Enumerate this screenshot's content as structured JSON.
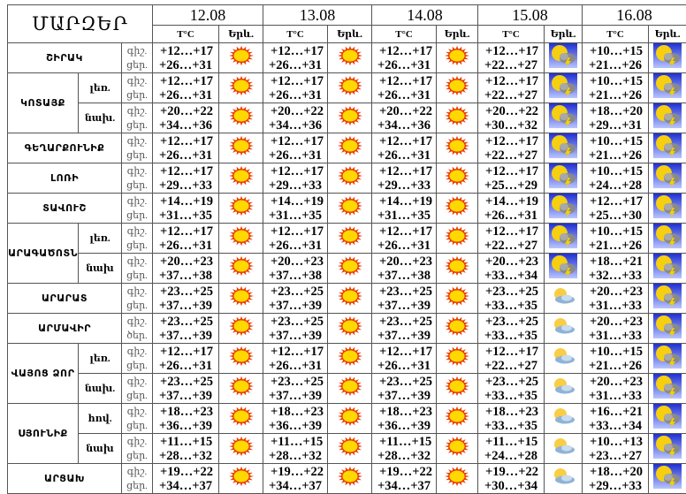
{
  "header": {
    "title": "ՄԱՐԶԵՐ",
    "temp_label": "T°C",
    "city_label": "Երև."
  },
  "dates": [
    "12.08",
    "13.08",
    "14.08",
    "15.08",
    "16.08"
  ],
  "colors": {
    "sun": "#ffd800",
    "sun_rays": "#e8400a",
    "thunder_bg": "#3a4fe0"
  },
  "regions": [
    {
      "name": "ՇԻՐԱԿ",
      "subs": [
        {
          "label": "",
          "night": "գիշ.",
          "day": "ցեր.",
          "f": [
            {
              "n": "+12…+17",
              "d": "+26…+31",
              "icon": "sun"
            },
            {
              "n": "+12…+17",
              "d": "+26…+31",
              "icon": "sun"
            },
            {
              "n": "+12…+17",
              "d": "+26…+31",
              "icon": "sun"
            },
            {
              "n": "+12…+17",
              "d": "+22…+27",
              "icon": "sun-cloud-thunder"
            },
            {
              "n": "+10…+15",
              "d": "+21…+26",
              "icon": "sun-cloud-thunder"
            }
          ]
        }
      ]
    },
    {
      "name": "ԿՈՏԱՅՔ",
      "subs": [
        {
          "label": "լեռ.",
          "night": "գիշ.",
          "day": "ցեր.",
          "f": [
            {
              "n": "+12…+17",
              "d": "+26…+31",
              "icon": "sun"
            },
            {
              "n": "+12…+17",
              "d": "+26…+31",
              "icon": "sun"
            },
            {
              "n": "+12…+17",
              "d": "+26…+31",
              "icon": "sun"
            },
            {
              "n": "+12…+17",
              "d": "+22…+27",
              "icon": "sun-cloud-thunder"
            },
            {
              "n": "+10…+15",
              "d": "+21…+26",
              "icon": "sun-cloud-thunder"
            }
          ]
        },
        {
          "label": "նախ.",
          "night": "գիշ.",
          "day": "ցեր.",
          "f": [
            {
              "n": "+20…+22",
              "d": "+34…+36",
              "icon": "sun"
            },
            {
              "n": "+20…+22",
              "d": "+34…+36",
              "icon": "sun"
            },
            {
              "n": "+20…+22",
              "d": "+34…+36",
              "icon": "sun"
            },
            {
              "n": "+20…+22",
              "d": "+30…+32",
              "icon": "sun-cloud-thunder"
            },
            {
              "n": "+18…+20",
              "d": "+29…+31",
              "icon": "sun-cloud-thunder"
            }
          ]
        }
      ]
    },
    {
      "name": "ԳԵՂԱՐՔՈՒՆԻՔ",
      "subs": [
        {
          "label": "",
          "night": "գիշ.",
          "day": "ցեր.",
          "f": [
            {
              "n": "+12…+17",
              "d": "+26…+31",
              "icon": "sun"
            },
            {
              "n": "+12…+17",
              "d": "+26…+31",
              "icon": "sun"
            },
            {
              "n": "+12…+17",
              "d": "+26…+31",
              "icon": "sun"
            },
            {
              "n": "+12…+17",
              "d": "+22…+27",
              "icon": "sun-cloud-thunder"
            },
            {
              "n": "+10…+15",
              "d": "+21…+26",
              "icon": "sun-cloud-thunder"
            }
          ]
        }
      ]
    },
    {
      "name": "ԼՈՌԻ",
      "subs": [
        {
          "label": "",
          "night": "գիշ.",
          "day": "ցեր.",
          "f": [
            {
              "n": "+12…+17",
              "d": "+29…+33",
              "icon": "sun"
            },
            {
              "n": "+12…+17",
              "d": "+29…+33",
              "icon": "sun"
            },
            {
              "n": "+12…+17",
              "d": "+29…+33",
              "icon": "sun"
            },
            {
              "n": "+12…+17",
              "d": "+25…+29",
              "icon": "sun-cloud-thunder"
            },
            {
              "n": "+10…+15",
              "d": "+24…+28",
              "icon": "sun-cloud-thunder"
            }
          ]
        }
      ]
    },
    {
      "name": "ՏԱՎՈՒՇ",
      "subs": [
        {
          "label": "",
          "night": "գիշ.",
          "day": "ցեր.",
          "f": [
            {
              "n": "+14…+19",
              "d": "+31…+35",
              "icon": "sun"
            },
            {
              "n": "+14…+19",
              "d": "+31…+35",
              "icon": "sun"
            },
            {
              "n": "+14…+19",
              "d": "+31…+35",
              "icon": "sun"
            },
            {
              "n": "+14…+19",
              "d": "+26…+31",
              "icon": "sun-cloud-thunder"
            },
            {
              "n": "+12…+17",
              "d": "+25…+30",
              "icon": "sun-cloud-thunder"
            }
          ]
        }
      ]
    },
    {
      "name": "ԱՐԱԳԱԾՈՏՆ",
      "subs": [
        {
          "label": "լեռ.",
          "night": "գիշ.",
          "day": "ցեր.",
          "f": [
            {
              "n": "+12…+17",
              "d": "+26…+31",
              "icon": "sun"
            },
            {
              "n": "+12…+17",
              "d": "+26…+31",
              "icon": "sun"
            },
            {
              "n": "+12…+17",
              "d": "+26…+31",
              "icon": "sun"
            },
            {
              "n": "+12…+17",
              "d": "+22…+27",
              "icon": "sun-cloud-thunder"
            },
            {
              "n": "+10…+15",
              "d": "+21…+26",
              "icon": "sun-cloud-thunder"
            }
          ]
        },
        {
          "label": "նախ",
          "night": "գիշ.",
          "day": "ցեր.",
          "f": [
            {
              "n": "+20…+23",
              "d": "+37…+38",
              "icon": "sun"
            },
            {
              "n": "+20…+23",
              "d": "+37…+38",
              "icon": "sun"
            },
            {
              "n": "+20…+23",
              "d": "+37…+38",
              "icon": "sun"
            },
            {
              "n": "+20…+23",
              "d": "+33…+34",
              "icon": "sun-cloud-thunder"
            },
            {
              "n": "+18…+21",
              "d": "+32…+33",
              "icon": "sun-cloud-thunder"
            }
          ]
        }
      ]
    },
    {
      "name": "ԱՐԱՐԱՏ",
      "subs": [
        {
          "label": "",
          "night": "գիշ.",
          "day": "ցեր.",
          "f": [
            {
              "n": "+23…+25",
              "d": "+37…+39",
              "icon": "sun"
            },
            {
              "n": "+23…+25",
              "d": "+37…+39",
              "icon": "sun"
            },
            {
              "n": "+23…+25",
              "d": "+37…+39",
              "icon": "sun"
            },
            {
              "n": "+23…+25",
              "d": "+33…+35",
              "icon": "sun-cloud"
            },
            {
              "n": "+20…+23",
              "d": "+31…+33",
              "icon": "sun-cloud-thunder"
            }
          ]
        }
      ]
    },
    {
      "name": "ԱՐՄԱՎԻՐ",
      "subs": [
        {
          "label": "",
          "night": "գիշ.",
          "day": "ծեր.",
          "f": [
            {
              "n": "+23…+25",
              "d": "+37…+39",
              "icon": "sun"
            },
            {
              "n": "+23…+25",
              "d": "+37…+39",
              "icon": "sun"
            },
            {
              "n": "+23…+25",
              "d": "+37…+39",
              "icon": "sun"
            },
            {
              "n": "+23…+25",
              "d": "+33…+35",
              "icon": "sun-cloud"
            },
            {
              "n": "+20…+23",
              "d": "+31…+33",
              "icon": "sun-cloud-thunder"
            }
          ]
        }
      ]
    },
    {
      "name": "ՎԱՅՈՑ ՁՈՐ",
      "subs": [
        {
          "label": "լեռ.",
          "night": "գիշ.",
          "day": "ցեր.",
          "f": [
            {
              "n": "+12…+17",
              "d": "+26…+31",
              "icon": "sun"
            },
            {
              "n": "+12…+17",
              "d": "+26…+31",
              "icon": "sun"
            },
            {
              "n": "+12…+17",
              "d": "+26…+31",
              "icon": "sun"
            },
            {
              "n": "+12…+17",
              "d": "+22…+27",
              "icon": "sun-cloud"
            },
            {
              "n": "+10…+15",
              "d": "+21…+26",
              "icon": "sun-cloud-thunder"
            }
          ]
        },
        {
          "label": "նախ.",
          "night": "գիշ.",
          "day": "ցեր.",
          "f": [
            {
              "n": "+23…+25",
              "d": "+37…+39",
              "icon": "sun"
            },
            {
              "n": "+23…+25",
              "d": "+37…+39",
              "icon": "sun"
            },
            {
              "n": "+23…+25",
              "d": "+37…+39",
              "icon": "sun"
            },
            {
              "n": "+23…+25",
              "d": "+33…+35",
              "icon": "sun-cloud"
            },
            {
              "n": "+20…+23",
              "d": "+31…+33",
              "icon": "sun-cloud-thunder"
            }
          ]
        }
      ]
    },
    {
      "name": "ՍՅՈՒՆԻՔ",
      "subs": [
        {
          "label": "հով.",
          "night": "գիշ.",
          "day": "ցեր.",
          "f": [
            {
              "n": "+18…+23",
              "d": "+36…+39",
              "icon": "sun"
            },
            {
              "n": "+18…+23",
              "d": "+36…+39",
              "icon": "sun"
            },
            {
              "n": "+18…+23",
              "d": "+36…+39",
              "icon": "sun"
            },
            {
              "n": "+18…+23",
              "d": "+33…+35",
              "icon": "sun-cloud"
            },
            {
              "n": "+16…+21",
              "d": "+33…+34",
              "icon": "sun-cloud-thunder"
            }
          ]
        },
        {
          "label": "նախ",
          "night": "գիշ.",
          "day": "ցեր.",
          "f": [
            {
              "n": "+11…+15",
              "d": "+28…+32",
              "icon": "sun"
            },
            {
              "n": "+11…+15",
              "d": "+28…+32",
              "icon": "sun"
            },
            {
              "n": "+11…+15",
              "d": "+28…+32",
              "icon": "sun"
            },
            {
              "n": "+11…+15",
              "d": "+24…+28",
              "icon": "sun-cloud"
            },
            {
              "n": "+10…+13",
              "d": "+23…+27",
              "icon": "sun-cloud-thunder"
            }
          ]
        }
      ]
    },
    {
      "name": "ԱՐՑԱԽ",
      "subs": [
        {
          "label": "",
          "night": "գիշ.",
          "day": "ցեր.",
          "f": [
            {
              "n": "+19…+22",
              "d": "+34…+37",
              "icon": "sun"
            },
            {
              "n": "+19…+22",
              "d": "+34…+37",
              "icon": "sun"
            },
            {
              "n": "+19…+22",
              "d": "+34…+37",
              "icon": "sun"
            },
            {
              "n": "+19…+22",
              "d": "+30…+34",
              "icon": "sun-cloud"
            },
            {
              "n": "+18…+20",
              "d": "+29…+33",
              "icon": "sun-cloud-thunder"
            }
          ]
        }
      ]
    }
  ]
}
